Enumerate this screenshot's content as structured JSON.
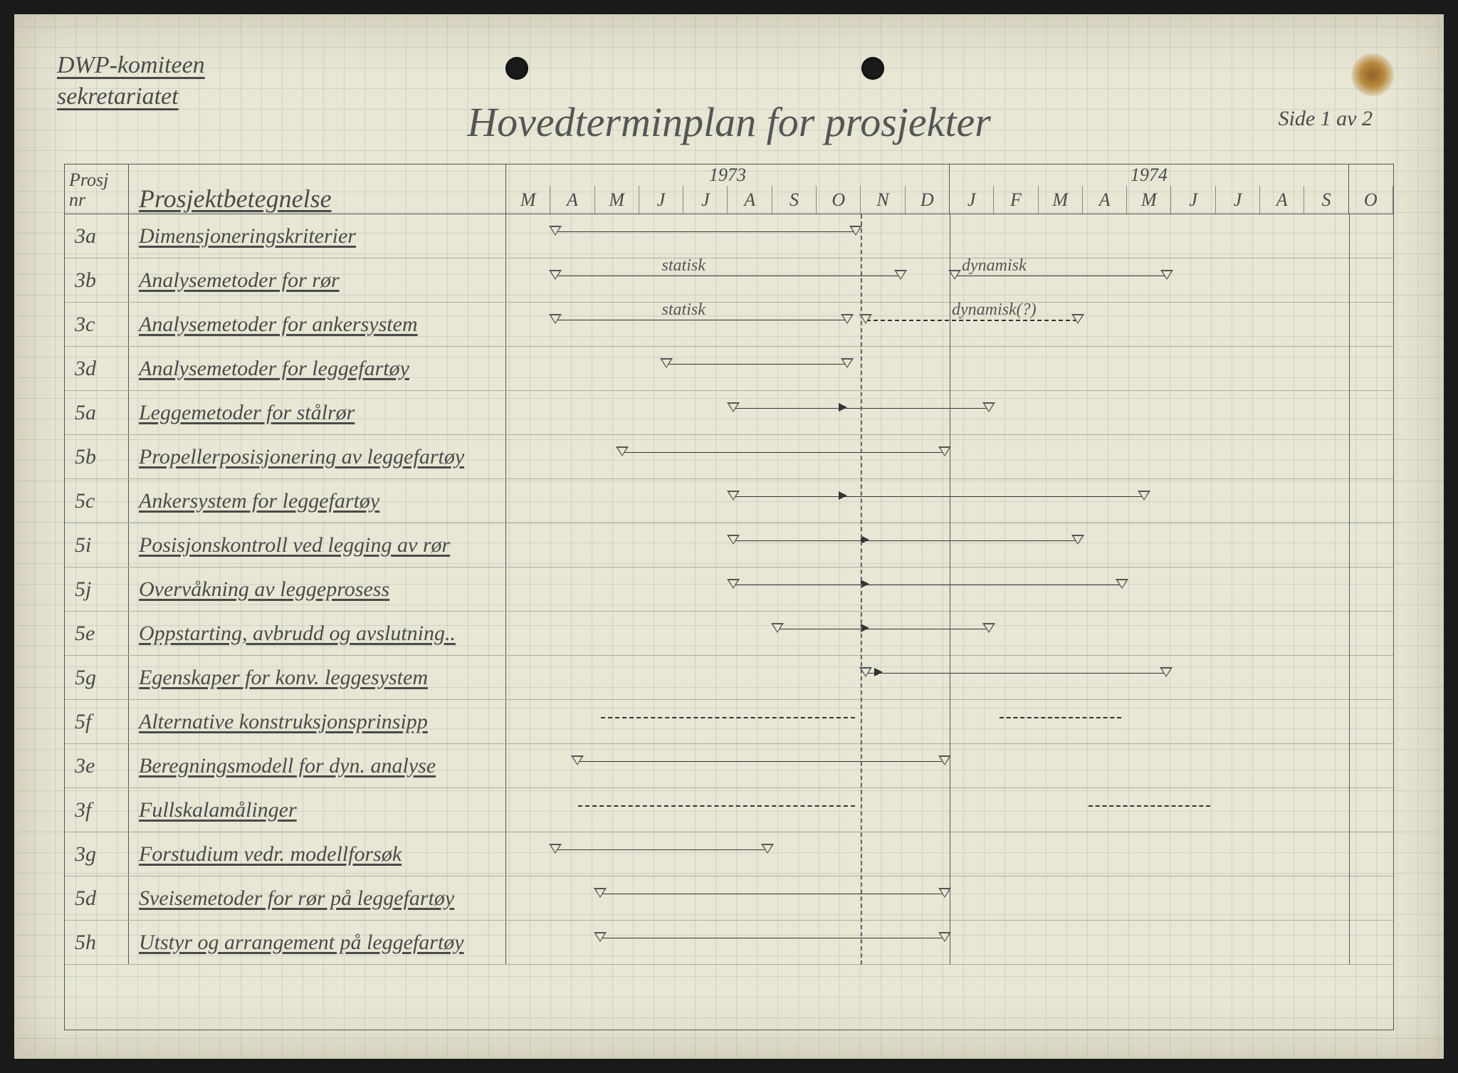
{
  "header": {
    "org_line1": "DWP-komiteen",
    "org_line2": "sekretariatet",
    "title": "Hovedterminplan for prosjekter",
    "page_label": "Side 1 av 2"
  },
  "columns": {
    "nr_label_line1": "Prosj",
    "nr_label_line2": "nr",
    "name_label": "Prosjektbetegnelse"
  },
  "timeline": {
    "years": [
      "1973",
      "1974"
    ],
    "months": [
      "M",
      "A",
      "M",
      "J",
      "J",
      "A",
      "S",
      "O",
      "N",
      "D",
      "J",
      "F",
      "M",
      "A",
      "M",
      "J",
      "J",
      "A",
      "S",
      "O"
    ],
    "month_count": 20,
    "year_dividers_after_month": [
      10,
      19
    ],
    "dashline_after_month": 8,
    "colors": {
      "ink": "#4a4a4a",
      "bar": "#333333",
      "paper": "#e8e6d4",
      "grid": "rgba(120,160,170,0.25)"
    }
  },
  "rows": [
    {
      "nr": "3a",
      "name": "Dimensjoneringskriterier",
      "bars": [
        {
          "start": 1,
          "end": 8,
          "style": "solid"
        }
      ]
    },
    {
      "nr": "3b",
      "name": "Analysemetoder for rør",
      "bars": [
        {
          "start": 1,
          "end": 9,
          "style": "solid",
          "label": "statisk",
          "label_pos": 4
        },
        {
          "start": 10,
          "end": 15,
          "style": "solid",
          "label": "dynamisk",
          "label_pos": 11
        }
      ]
    },
    {
      "nr": "3c",
      "name": "Analysemetoder for ankersystem",
      "bars": [
        {
          "start": 1,
          "end": 7.8,
          "style": "solid",
          "label": "statisk",
          "label_pos": 4
        },
        {
          "start": 8,
          "end": 13,
          "style": "dashed",
          "label": "dynamisk(?)",
          "label_pos": 11
        }
      ]
    },
    {
      "nr": "3d",
      "name": "Analysemetoder for leggefartøy",
      "bars": [
        {
          "start": 3.5,
          "end": 7.8,
          "style": "solid"
        }
      ]
    },
    {
      "nr": "5a",
      "name": "Leggemetoder for stålrør",
      "bars": [
        {
          "start": 5,
          "end": 11,
          "style": "solid",
          "arrow_at": 7.5
        }
      ]
    },
    {
      "nr": "5b",
      "name": "Propellerposisjonering av leggefartøy",
      "bars": [
        {
          "start": 2.5,
          "end": 10,
          "style": "solid"
        }
      ]
    },
    {
      "nr": "5c",
      "name": "Ankersystem for leggefartøy",
      "bars": [
        {
          "start": 5,
          "end": 14.5,
          "style": "solid",
          "arrow_at": 7.5
        }
      ]
    },
    {
      "nr": "5i",
      "name": "Posisjonskontroll ved legging av rør",
      "bars": [
        {
          "start": 5,
          "end": 13,
          "style": "solid",
          "arrow_at": 8
        }
      ]
    },
    {
      "nr": "5j",
      "name": "Overvåkning av leggeprosess",
      "bars": [
        {
          "start": 5,
          "end": 14,
          "style": "solid",
          "arrow_at": 8
        }
      ]
    },
    {
      "nr": "5e",
      "name": "Oppstarting, avbrudd og avslutning..",
      "bars": [
        {
          "start": 6,
          "end": 11,
          "style": "solid",
          "arrow_at": 8
        }
      ]
    },
    {
      "nr": "5g",
      "name": "Egenskaper for konv. leggesystem",
      "bars": [
        {
          "start": 8,
          "end": 15,
          "style": "solid",
          "arrow_at": 8.3
        }
      ]
    },
    {
      "nr": "5f",
      "name": "Alternative konstruksjonsprinsipp",
      "bars": [
        {
          "start": 2,
          "end": 8,
          "style": "dashed",
          "no_tri": true
        },
        {
          "start": 11,
          "end": 14,
          "style": "dashed",
          "no_tri": true
        }
      ]
    },
    {
      "nr": "3e",
      "name": "Beregningsmodell for dyn. analyse",
      "bars": [
        {
          "start": 1.5,
          "end": 10,
          "style": "solid"
        }
      ]
    },
    {
      "nr": "3f",
      "name": "Fullskalamålinger",
      "bars": [
        {
          "start": 1.5,
          "end": 8,
          "style": "dashed",
          "no_tri": true
        },
        {
          "start": 13,
          "end": 16,
          "style": "dashed",
          "no_tri": true
        }
      ]
    },
    {
      "nr": "3g",
      "name": "Forstudium vedr. modellforsøk",
      "bars": [
        {
          "start": 1,
          "end": 6,
          "style": "solid"
        }
      ]
    },
    {
      "nr": "5d",
      "name": "Sveisemetoder for rør på leggefartøy",
      "bars": [
        {
          "start": 2,
          "end": 10,
          "style": "solid"
        }
      ]
    },
    {
      "nr": "5h",
      "name": "Utstyr og arrangement på leggefartøy",
      "bars": [
        {
          "start": 2,
          "end": 10,
          "style": "solid"
        }
      ]
    }
  ]
}
